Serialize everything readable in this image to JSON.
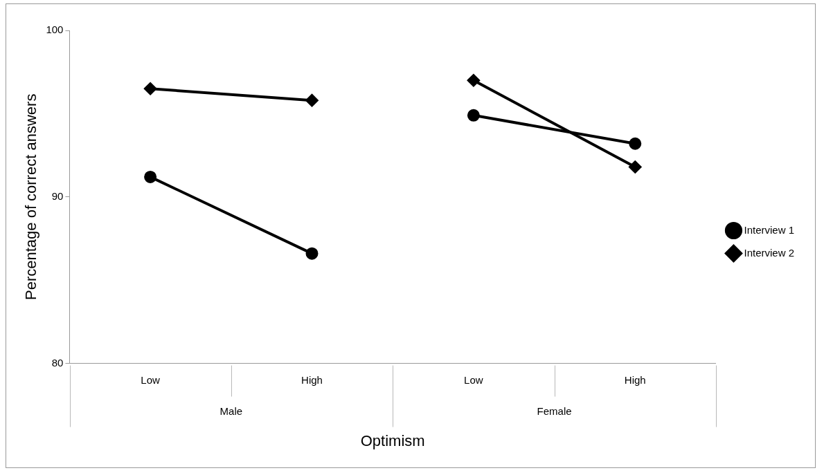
{
  "chart_data": {
    "type": "line",
    "xlabel": "Optimism",
    "ylabel": "Percentage of correct answers",
    "categories": [
      "Low",
      "High",
      "Low",
      "High"
    ],
    "annotations": [
      "Male",
      "Female"
    ],
    "series": [
      {
        "name": "Interview 1",
        "color": "#000000",
        "marker": "circle",
        "values": [
          91.2,
          86.6,
          94.9,
          93.2
        ]
      },
      {
        "name": "Interview 2",
        "color": "#000000",
        "marker": "diamond",
        "values": [
          96.5,
          95.8,
          97.0,
          91.8
        ]
      }
    ],
    "ylim": [
      80,
      100
    ],
    "yticks": [
      80,
      90,
      100
    ],
    "grid": false,
    "legend": "right"
  }
}
